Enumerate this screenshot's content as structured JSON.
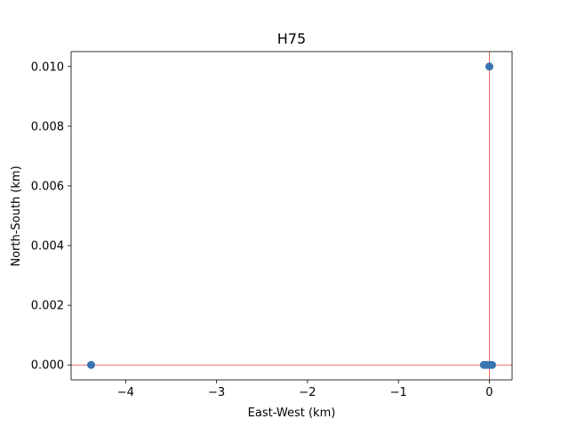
{
  "chart_data": {
    "type": "scatter",
    "title": "H75",
    "xlabel": "East-West (km)",
    "ylabel": "North-South (km)",
    "xlim": [
      -4.6,
      0.25
    ],
    "ylim": [
      -0.0005,
      0.0105
    ],
    "xticks": [
      -4,
      -3,
      -2,
      -1,
      0
    ],
    "xtick_labels": [
      "−4",
      "−3",
      "−2",
      "−1",
      "0"
    ],
    "yticks": [
      0.0,
      0.002,
      0.004,
      0.006,
      0.008,
      0.01
    ],
    "ytick_labels": [
      "0.000",
      "0.002",
      "0.004",
      "0.006",
      "0.008",
      "0.010"
    ],
    "grid": false,
    "reference_lines": {
      "x": 0,
      "y": 0,
      "color": "#e0453b"
    },
    "series": [
      {
        "color": "#3a75b0",
        "points": [
          {
            "x": -4.38,
            "y": 0.0
          },
          {
            "x": -0.06,
            "y": 0.0
          },
          {
            "x": -0.03,
            "y": 0.0
          },
          {
            "x": 0.0,
            "y": 0.0
          },
          {
            "x": 0.03,
            "y": 0.0
          },
          {
            "x": 0.0,
            "y": 0.01
          }
        ]
      }
    ]
  }
}
